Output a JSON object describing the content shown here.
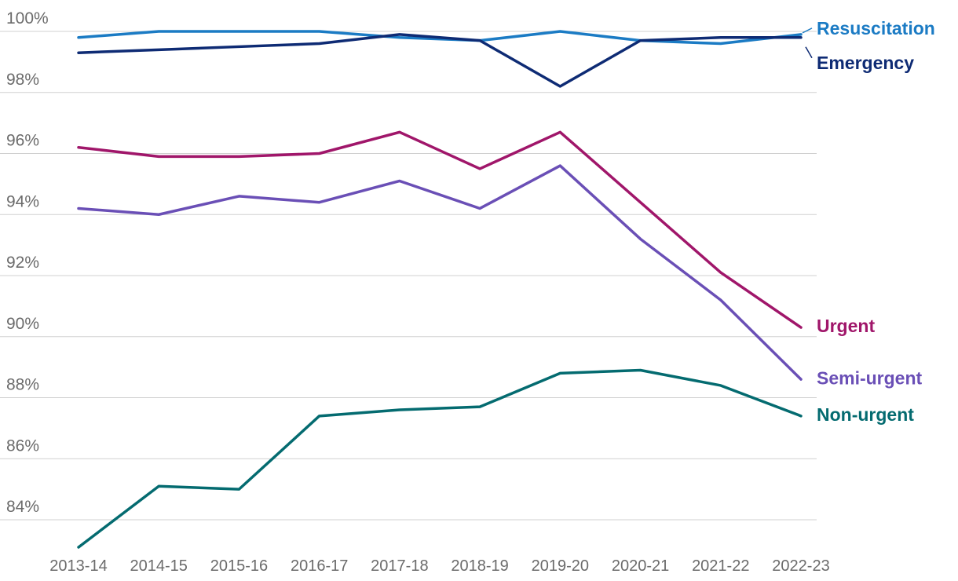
{
  "chart_data": {
    "type": "line",
    "title": "",
    "xlabel": "",
    "ylabel": "",
    "ylim": [
      83,
      100.5
    ],
    "grid": true,
    "legend": "direct labels at right end of each line",
    "yticks": [
      "100%",
      "98%",
      "96%",
      "94%",
      "92%",
      "90%",
      "88%",
      "86%",
      "84%"
    ],
    "ytick_values": [
      100,
      98,
      96,
      94,
      92,
      90,
      88,
      86,
      84
    ],
    "categories": [
      "2013-14",
      "2014-15",
      "2015-16",
      "2016-17",
      "2017-18",
      "2018-19",
      "2019-20",
      "2020-21",
      "2021-22",
      "2022-23"
    ],
    "series": [
      {
        "name": "Resuscitation",
        "color": "#1b7bc4",
        "values": [
          99.8,
          100.0,
          100.0,
          100.0,
          99.8,
          99.7,
          100.0,
          99.7,
          99.6,
          99.9
        ]
      },
      {
        "name": "Emergency",
        "color": "#0e2b74",
        "values": [
          99.3,
          99.4,
          99.5,
          99.6,
          99.9,
          99.7,
          98.2,
          99.7,
          99.8,
          99.8
        ]
      },
      {
        "name": "Urgent",
        "color": "#a0166a",
        "values": [
          96.2,
          95.9,
          95.9,
          96.0,
          96.7,
          95.5,
          96.7,
          94.4,
          92.1,
          90.3
        ]
      },
      {
        "name": "Semi-urgent",
        "color": "#6a4fb6",
        "values": [
          94.2,
          94.0,
          94.6,
          94.4,
          95.1,
          94.2,
          95.6,
          93.2,
          91.2,
          88.6
        ]
      },
      {
        "name": "Non-urgent",
        "color": "#046b70",
        "values": [
          83.1,
          85.1,
          85.0,
          87.4,
          87.6,
          87.7,
          88.8,
          88.9,
          88.4,
          87.4
        ]
      }
    ]
  }
}
